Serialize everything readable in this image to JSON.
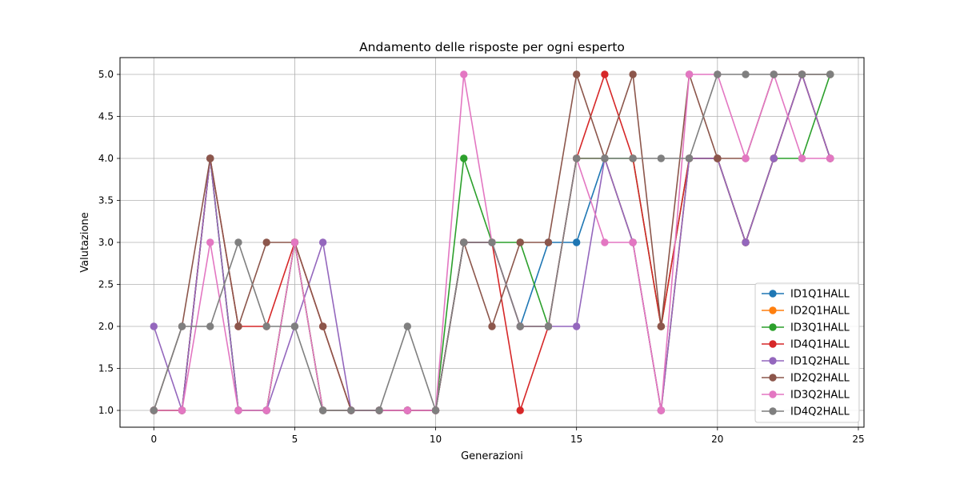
{
  "chart_data": {
    "type": "line",
    "title": "Andamento delle risposte per ogni esperto",
    "xlabel": "Generazioni",
    "ylabel": "Valutazione",
    "xlim": [
      -1.2,
      25.2
    ],
    "ylim": [
      0.8,
      5.2
    ],
    "xticks": [
      0,
      5,
      10,
      15,
      20,
      25
    ],
    "xtick_labels": [
      "0",
      "5",
      "10",
      "15",
      "20",
      "25"
    ],
    "yticks": [
      1.0,
      1.5,
      2.0,
      2.5,
      3.0,
      3.5,
      4.0,
      4.5,
      5.0
    ],
    "ytick_labels": [
      "1.0",
      "1.5",
      "2.0",
      "2.5",
      "3.0",
      "3.5",
      "4.0",
      "4.5",
      "5.0"
    ],
    "grid": true,
    "legend_position": "bottom-right",
    "x": [
      0,
      1,
      2,
      3,
      4,
      5,
      6,
      7,
      8,
      9,
      10,
      11,
      12,
      13,
      14,
      15,
      16,
      17,
      18,
      19,
      20,
      21,
      22,
      23,
      24
    ],
    "series": [
      {
        "name": "ID1Q1HALL",
        "color": "#1f77b4",
        "values": [
          1,
          1,
          4,
          1,
          1,
          3,
          1,
          1,
          1,
          1,
          1,
          3,
          3,
          2,
          3,
          3,
          4,
          3,
          1,
          4,
          4,
          3,
          4,
          5,
          4
        ]
      },
      {
        "name": "ID2Q1HALL",
        "color": "#ff7f0e",
        "values": [
          1,
          1,
          4,
          1,
          1,
          3,
          1,
          1,
          1,
          1,
          1,
          3,
          3,
          2,
          2,
          4,
          4,
          3,
          1,
          4,
          4,
          3,
          4,
          5,
          4
        ]
      },
      {
        "name": "ID3Q1HALL",
        "color": "#2ca02c",
        "values": [
          1,
          1,
          4,
          1,
          1,
          3,
          1,
          1,
          1,
          1,
          1,
          4,
          3,
          3,
          2,
          4,
          4,
          4,
          2,
          4,
          4,
          3,
          4,
          4,
          5
        ]
      },
      {
        "name": "ID4Q1HALL",
        "color": "#d62728",
        "values": [
          1,
          1,
          4,
          2,
          2,
          3,
          2,
          1,
          1,
          1,
          1,
          3,
          3,
          1,
          2,
          4,
          5,
          4,
          2,
          4,
          4,
          3,
          4,
          5,
          4
        ]
      },
      {
        "name": "ID1Q2HALL",
        "color": "#9467bd",
        "values": [
          2,
          1,
          4,
          1,
          1,
          2,
          3,
          1,
          1,
          1,
          1,
          3,
          3,
          2,
          2,
          2,
          4,
          3,
          1,
          4,
          4,
          3,
          4,
          5,
          4
        ]
      },
      {
        "name": "ID2Q2HALL",
        "color": "#8c564b",
        "values": [
          1,
          2,
          4,
          2,
          3,
          3,
          2,
          1,
          1,
          1,
          1,
          3,
          2,
          3,
          3,
          5,
          4,
          5,
          2,
          5,
          4,
          4,
          5,
          5,
          5
        ]
      },
      {
        "name": "ID3Q2HALL",
        "color": "#e377c2",
        "values": [
          1,
          1,
          3,
          1,
          1,
          3,
          1,
          1,
          1,
          1,
          1,
          5,
          3,
          2,
          2,
          4,
          3,
          3,
          1,
          5,
          5,
          4,
          5,
          4,
          4
        ]
      },
      {
        "name": "ID4Q2HALL",
        "color": "#7f7f7f",
        "values": [
          1,
          2,
          2,
          3,
          2,
          2,
          1,
          1,
          1,
          2,
          1,
          3,
          3,
          2,
          2,
          4,
          4,
          4,
          4,
          4,
          5,
          5,
          5,
          5,
          5
        ]
      }
    ]
  }
}
